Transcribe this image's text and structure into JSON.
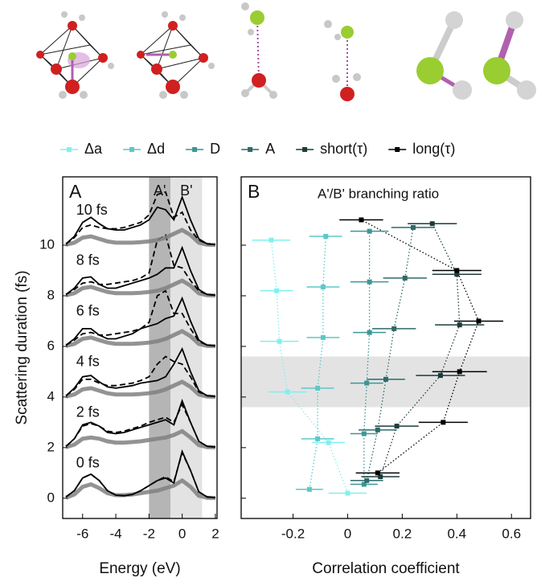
{
  "chart_data": [
    {
      "type": "line",
      "panel_label": "A",
      "xlabel": "Energy (eV)",
      "ylabel": "Scattering duration (fs)",
      "xlim": [
        -7.2,
        2.1
      ],
      "xticks": [
        -6,
        -4,
        -2,
        0,
        2
      ],
      "ylim": [
        -0.8,
        12.7
      ],
      "yticks": [
        0,
        2,
        4,
        6,
        8,
        10
      ],
      "bands": [
        {
          "range": [
            -2,
            -0.7
          ],
          "color": "#b5b5b5",
          "label": "A'"
        },
        {
          "range": [
            -0.7,
            1.2
          ],
          "color": "#e3e3e3",
          "label": "B'"
        }
      ],
      "x": [
        -7,
        -6.5,
        -6,
        -5.5,
        -5,
        -4.5,
        -4,
        -3.5,
        -3,
        -2.5,
        -2,
        -1.5,
        -1,
        -0.5,
        0,
        0.5,
        1,
        1.5,
        2
      ],
      "traces": [
        {
          "label": "0 fs",
          "offset": 0,
          "series": [
            {
              "style": "ensemble",
              "color": "#808080",
              "values": [
                0.02,
                0.15,
                0.45,
                0.55,
                0.4,
                0.2,
                0.12,
                0.12,
                0.15,
                0.2,
                0.25,
                0.3,
                0.4,
                0.5,
                0.7,
                0.45,
                0.1,
                0.02,
                0.01
              ]
            },
            {
              "style": "solid",
              "color": "#000000",
              "values": [
                0.05,
                0.3,
                0.8,
                0.95,
                0.7,
                0.3,
                0.12,
                0.1,
                0.15,
                0.3,
                0.5,
                0.7,
                0.8,
                0.6,
                1.85,
                1.1,
                0.25,
                0.05,
                0.02
              ]
            },
            {
              "style": "dashed",
              "color": "#000000",
              "values": [
                0.05,
                0.3,
                0.8,
                0.95,
                0.7,
                0.3,
                0.12,
                0.1,
                0.15,
                0.3,
                0.5,
                0.7,
                0.85,
                0.65,
                1.8,
                1.1,
                0.25,
                0.05,
                0.02
              ]
            }
          ]
        },
        {
          "label": "2 fs",
          "offset": 2,
          "series": [
            {
              "style": "ensemble",
              "color": "#808080",
              "values": [
                0.02,
                0.12,
                0.35,
                0.4,
                0.35,
                0.25,
                0.2,
                0.2,
                0.22,
                0.25,
                0.3,
                0.35,
                0.4,
                0.5,
                0.65,
                0.4,
                0.1,
                0.02,
                0.01
              ]
            },
            {
              "style": "solid",
              "color": "#000000",
              "values": [
                0.05,
                0.35,
                0.9,
                1.0,
                0.85,
                0.6,
                0.55,
                0.6,
                0.7,
                0.8,
                0.9,
                1.0,
                1.1,
                0.9,
                1.85,
                1.0,
                0.25,
                0.05,
                0.02
              ]
            },
            {
              "style": "dashed",
              "color": "#000000",
              "values": [
                0.05,
                0.35,
                0.85,
                0.95,
                0.85,
                0.65,
                0.6,
                0.65,
                0.75,
                0.85,
                1.0,
                1.1,
                1.2,
                1.0,
                1.7,
                1.0,
                0.25,
                0.05,
                0.02
              ]
            }
          ]
        },
        {
          "label": "4 fs",
          "offset": 4,
          "series": [
            {
              "style": "ensemble",
              "color": "#808080",
              "values": [
                0.02,
                0.1,
                0.3,
                0.35,
                0.25,
                0.15,
                0.1,
                0.1,
                0.1,
                0.12,
                0.15,
                0.2,
                0.3,
                0.45,
                0.6,
                0.4,
                0.1,
                0.02,
                0.01
              ]
            },
            {
              "style": "solid",
              "color": "#000000",
              "values": [
                0.05,
                0.35,
                0.8,
                0.85,
                0.6,
                0.4,
                0.35,
                0.4,
                0.45,
                0.55,
                0.6,
                0.65,
                0.8,
                1.3,
                1.9,
                1.0,
                0.25,
                0.05,
                0.02
              ]
            },
            {
              "style": "dashed",
              "color": "#000000",
              "values": [
                0.05,
                0.3,
                0.7,
                0.7,
                0.55,
                0.45,
                0.45,
                0.5,
                0.55,
                0.65,
                0.8,
                1.3,
                1.6,
                1.4,
                1.3,
                0.8,
                0.2,
                0.05,
                0.02
              ]
            }
          ]
        },
        {
          "label": "6 fs",
          "offset": 6,
          "series": [
            {
              "style": "ensemble",
              "color": "#808080",
              "values": [
                0.02,
                0.1,
                0.3,
                0.35,
                0.25,
                0.15,
                0.1,
                0.1,
                0.1,
                0.12,
                0.15,
                0.2,
                0.3,
                0.45,
                0.6,
                0.4,
                0.1,
                0.02,
                0.01
              ]
            },
            {
              "style": "solid",
              "color": "#000000",
              "values": [
                0.05,
                0.3,
                0.7,
                0.7,
                0.45,
                0.3,
                0.3,
                0.4,
                0.5,
                0.7,
                0.8,
                0.9,
                1.1,
                1.2,
                1.9,
                1.0,
                0.25,
                0.05,
                0.02
              ]
            },
            {
              "style": "dashed",
              "color": "#000000",
              "values": [
                0.05,
                0.25,
                0.5,
                0.55,
                0.45,
                0.45,
                0.5,
                0.55,
                0.6,
                0.7,
                0.95,
                2.0,
                2.2,
                1.3,
                1.3,
                0.7,
                0.2,
                0.05,
                0.02
              ]
            }
          ]
        },
        {
          "label": "8 fs",
          "offset": 8,
          "series": [
            {
              "style": "ensemble",
              "color": "#808080",
              "values": [
                0.02,
                0.1,
                0.3,
                0.35,
                0.25,
                0.15,
                0.1,
                0.1,
                0.1,
                0.12,
                0.15,
                0.2,
                0.3,
                0.45,
                0.6,
                0.4,
                0.1,
                0.02,
                0.01
              ]
            },
            {
              "style": "solid",
              "color": "#000000",
              "values": [
                0.05,
                0.3,
                0.7,
                0.75,
                0.45,
                0.3,
                0.3,
                0.4,
                0.5,
                0.6,
                0.7,
                0.85,
                1.1,
                1.1,
                1.9,
                1.0,
                0.25,
                0.05,
                0.02
              ]
            },
            {
              "style": "dashed",
              "color": "#000000",
              "values": [
                0.05,
                0.25,
                0.5,
                0.55,
                0.45,
                0.45,
                0.5,
                0.55,
                0.6,
                0.7,
                0.9,
                2.2,
                2.4,
                1.2,
                1.1,
                0.6,
                0.2,
                0.05,
                0.02
              ]
            }
          ]
        },
        {
          "label": "10 fs",
          "offset": 10,
          "series": [
            {
              "style": "ensemble",
              "color": "#808080",
              "values": [
                0.02,
                0.1,
                0.3,
                0.35,
                0.25,
                0.15,
                0.1,
                0.1,
                0.1,
                0.12,
                0.15,
                0.2,
                0.3,
                0.45,
                0.6,
                0.4,
                0.1,
                0.02,
                0.01
              ]
            },
            {
              "style": "solid",
              "color": "#000000",
              "values": [
                0.05,
                0.35,
                0.9,
                1.1,
                0.85,
                0.65,
                0.6,
                0.6,
                0.7,
                0.8,
                1.0,
                1.5,
                1.4,
                1.0,
                1.9,
                1.0,
                0.25,
                0.05,
                0.02
              ]
            },
            {
              "style": "dashed",
              "color": "#000000",
              "values": [
                0.05,
                0.3,
                0.7,
                0.8,
                0.7,
                0.65,
                0.65,
                0.7,
                0.8,
                0.9,
                1.2,
                2.0,
                2.1,
                1.1,
                1.3,
                0.6,
                0.2,
                0.05,
                0.02
              ]
            }
          ]
        }
      ]
    },
    {
      "type": "scatter",
      "panel_label": "B",
      "title": "A'/B' branching ratio",
      "xlabel": "Correlation coefficient",
      "xlim": [
        -0.39,
        0.67
      ],
      "xticks": [
        -0.2,
        0,
        0.2,
        0.4,
        0.6
      ],
      "ylim": [
        -0.8,
        12.7
      ],
      "yticks": [
        0,
        2,
        4,
        6,
        8,
        10
      ],
      "highlight_band": [
        3.6,
        5.6
      ],
      "series": [
        {
          "name": "Δa",
          "color": "#80f0f0",
          "x": [
            0.0,
            -0.07,
            -0.22,
            -0.25,
            -0.26,
            -0.28
          ],
          "errors": [
            0.07,
            0.06,
            0.07,
            0.07,
            0.06,
            0.07
          ],
          "y": [
            0.2,
            2.2,
            4.2,
            6.2,
            8.2,
            10.2
          ]
        },
        {
          "name": "Δd",
          "color": "#5cc8c8",
          "x": [
            -0.14,
            -0.11,
            -0.11,
            -0.09,
            -0.09,
            -0.08
          ],
          "errors": [
            0.05,
            0.06,
            0.06,
            0.06,
            0.06,
            0.06
          ],
          "y": [
            0.35,
            2.35,
            4.35,
            6.35,
            8.35,
            10.35
          ]
        },
        {
          "name": "D",
          "color": "#3d9696",
          "x": [
            0.06,
            0.06,
            0.07,
            0.08,
            0.08,
            0.08
          ],
          "errors": [
            0.05,
            0.05,
            0.06,
            0.06,
            0.07,
            0.07
          ],
          "y": [
            0.55,
            2.55,
            4.55,
            6.55,
            8.55,
            10.55
          ]
        },
        {
          "name": "A",
          "color": "#2e6a6a",
          "x": [
            0.07,
            0.11,
            0.14,
            0.17,
            0.21,
            0.24
          ],
          "errors": [
            0.06,
            0.07,
            0.07,
            0.08,
            0.08,
            0.08
          ],
          "y": [
            0.7,
            2.7,
            4.7,
            6.7,
            8.7,
            10.7
          ]
        },
        {
          "name": "short(τ)",
          "color": "#1c3c3c",
          "x": [
            0.12,
            0.18,
            0.34,
            0.41,
            0.4,
            0.31
          ],
          "errors": [
            0.07,
            0.08,
            0.09,
            0.09,
            0.09,
            0.09
          ],
          "y": [
            0.85,
            2.85,
            4.85,
            6.85,
            8.85,
            10.85
          ]
        },
        {
          "name": "long(τ)",
          "color": "#000000",
          "x": [
            0.11,
            0.35,
            0.41,
            0.48,
            0.4,
            0.05
          ],
          "errors": [
            0.08,
            0.09,
            0.1,
            0.09,
            0.09,
            0.08
          ],
          "y": [
            1.0,
            3.0,
            5.0,
            7.0,
            9.0,
            11.0
          ]
        }
      ]
    }
  ]
}
